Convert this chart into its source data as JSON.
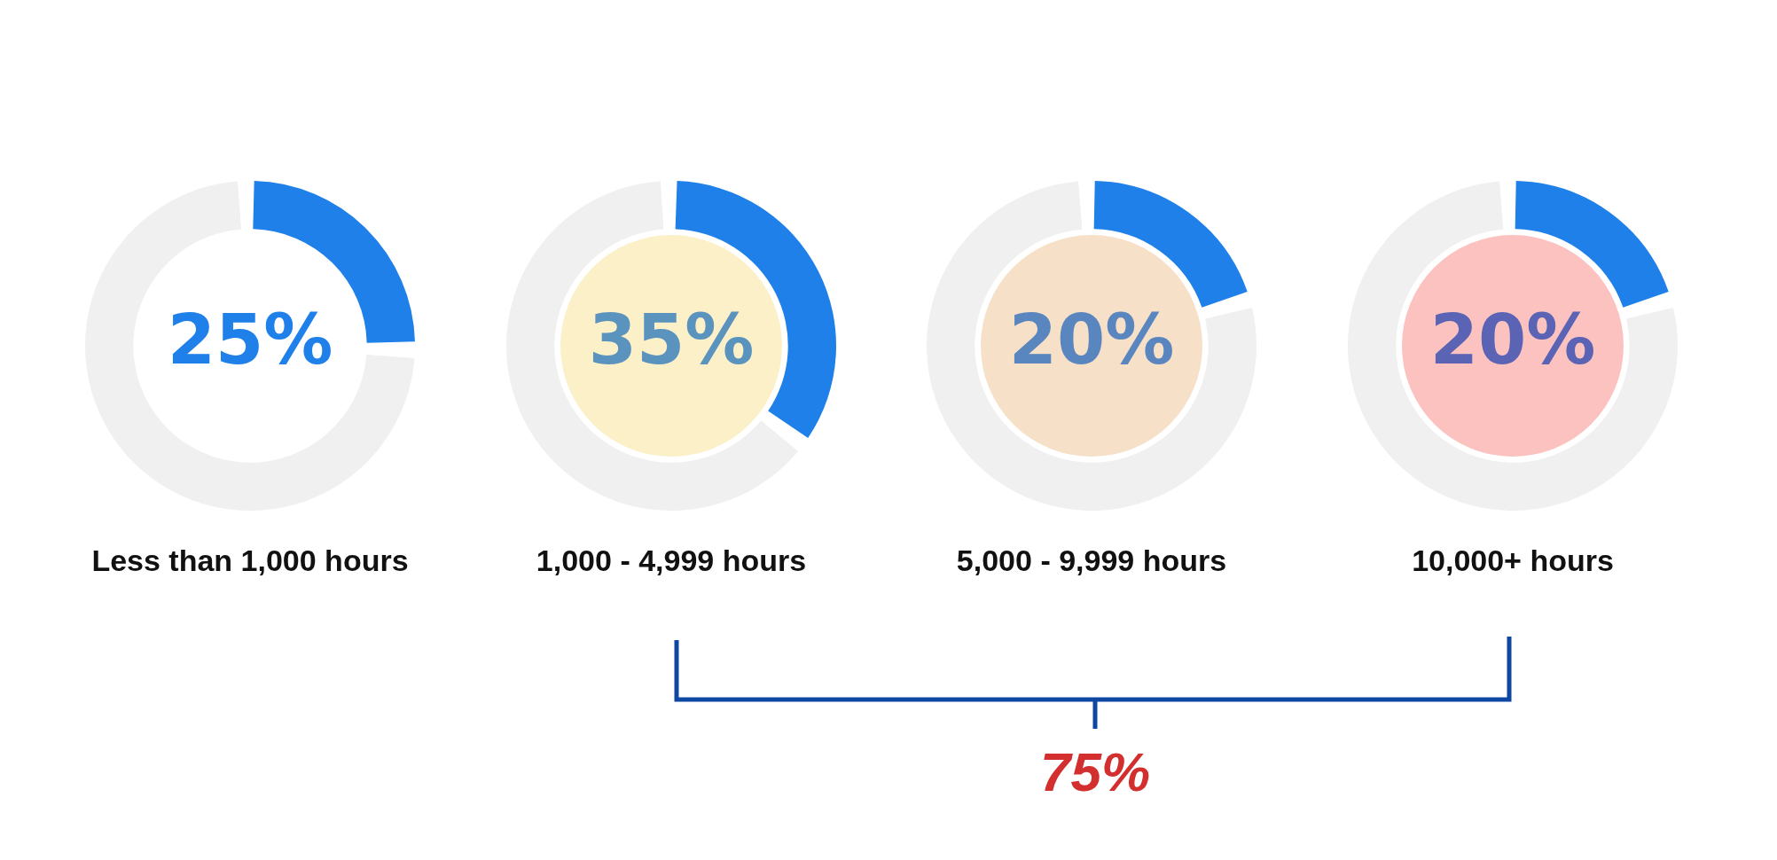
{
  "chart_data": [
    {
      "type": "donut",
      "title": "Less than 1,000 hours",
      "categories": [
        null,
        null
      ],
      "values": [
        25,
        75
      ],
      "colors": [
        "#1f80ea",
        "#f0f0f0"
      ],
      "value_labels": [
        "25%",
        null
      ]
    },
    {
      "type": "donut",
      "title": "1,000 - 4,999 hours",
      "categories": [
        null,
        null
      ],
      "values": [
        35,
        65
      ],
      "colors": [
        "#1f80ea",
        "#f0f0f0"
      ],
      "value_labels": [
        "35%",
        null
      ]
    },
    {
      "type": "donut",
      "title": "5,000 - 9,999 hours",
      "categories": [
        null,
        null
      ],
      "values": [
        20,
        80
      ],
      "colors": [
        "#1f80ea",
        "#f0f0f0"
      ],
      "value_labels": [
        "20%",
        null
      ]
    },
    {
      "type": "donut",
      "title": "10,000+ hours",
      "categories": [
        null,
        null
      ],
      "values": [
        20,
        80
      ],
      "colors": [
        "#1f80ea",
        "#f0f0f0"
      ],
      "value_labels": [
        "20%",
        null
      ]
    },
    {
      "type": "other",
      "annotations": [
        "75%"
      ]
    }
  ]
}
